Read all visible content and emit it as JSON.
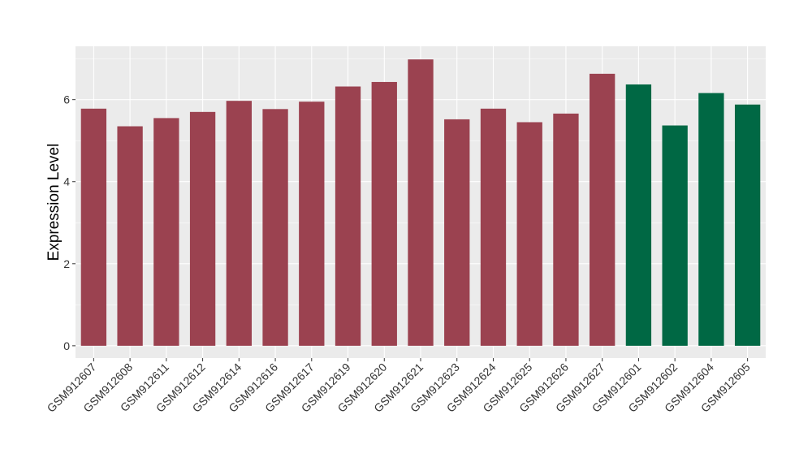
{
  "chart_data": {
    "type": "bar",
    "title": "",
    "xlabel": "",
    "ylabel": "Expression Level",
    "ylim": [
      -0.3,
      7.3
    ],
    "yticks": [
      0,
      2,
      4,
      6
    ],
    "ytick_labels": [
      "0",
      "2",
      "4",
      "6"
    ],
    "grid": true,
    "legend": "none",
    "panel_background": "#EBEBEB",
    "grid_color": "#FFFFFF",
    "categories": [
      "GSM912607",
      "GSM912608",
      "GSM912611",
      "GSM912612",
      "GSM912614",
      "GSM912616",
      "GSM912617",
      "GSM912619",
      "GSM912620",
      "GSM912621",
      "GSM912623",
      "GSM912624",
      "GSM912625",
      "GSM912626",
      "GSM912627",
      "GSM912601",
      "GSM912602",
      "GSM912604",
      "GSM912605"
    ],
    "values": [
      5.78,
      5.35,
      5.55,
      5.7,
      5.97,
      5.77,
      5.95,
      6.32,
      6.43,
      6.98,
      5.52,
      5.78,
      5.45,
      5.66,
      6.63,
      6.37,
      5.37,
      6.16,
      5.88
    ],
    "group_colors": {
      "group_a": "#9B4250",
      "group_b": "#006844"
    },
    "bar_groups": [
      "group_a",
      "group_a",
      "group_a",
      "group_a",
      "group_a",
      "group_a",
      "group_a",
      "group_a",
      "group_a",
      "group_a",
      "group_a",
      "group_a",
      "group_a",
      "group_a",
      "group_a",
      "group_b",
      "group_b",
      "group_b",
      "group_b"
    ]
  }
}
